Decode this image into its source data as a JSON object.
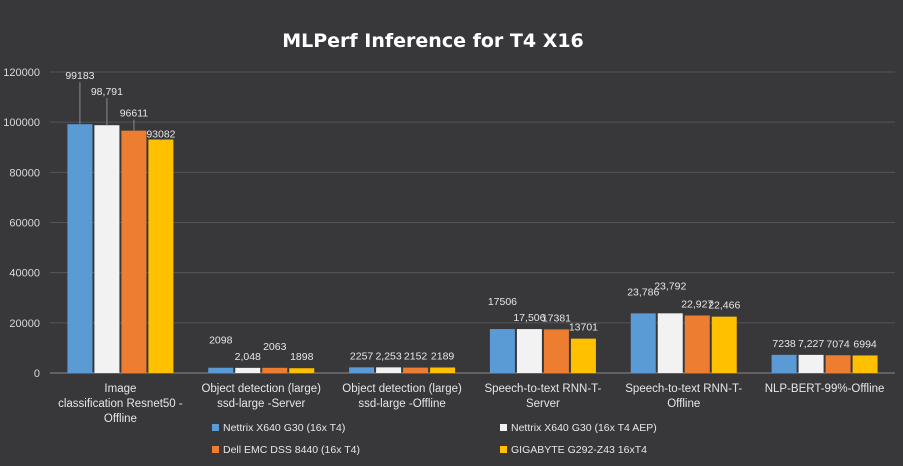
{
  "chart_data": {
    "type": "bar",
    "title": "MLPerf Inference for T4 X16",
    "xlabel": "",
    "ylabel": "",
    "ylim": [
      0,
      120000
    ],
    "yticks": [
      "0",
      "20000",
      "40000",
      "60000",
      "80000",
      "100000",
      "120000"
    ],
    "grid": true,
    "legend_position": "bottom",
    "categories": [
      [
        "Image",
        "classification Resnet50 -",
        "Offline"
      ],
      [
        "Object detection (large)",
        "ssd-large -Server"
      ],
      [
        "Object detection (large)",
        "ssd-large -Offline"
      ],
      [
        "Speech-to-text RNN-T-",
        "Server"
      ],
      [
        "Speech-to-text RNN-T-",
        "Offline"
      ],
      [
        "NLP-BERT-99%-Offline"
      ]
    ],
    "series": [
      {
        "name": "Nettrix X640 G30 (16x T4)",
        "color": "#5b9bd5",
        "values": [
          99183,
          2098,
          2257,
          17506,
          23786,
          7238
        ],
        "labels": [
          "99183",
          "2098",
          "2257",
          "17506",
          "23,786",
          "7238"
        ]
      },
      {
        "name": "Nettrix X640 G30 (16x T4 AEP)",
        "color": "#f2f2f2",
        "values": [
          98791,
          2048,
          2253,
          17506,
          23792,
          7227
        ],
        "labels": [
          "98,791",
          "2,048",
          "2,253",
          "17,506",
          "23,792",
          "7,227"
        ]
      },
      {
        "name": "Dell EMC DSS 8440 (16x T4)",
        "color": "#ed7d31",
        "values": [
          96611,
          2063,
          2152,
          17381,
          22927,
          7074
        ],
        "labels": [
          "96611",
          "2063",
          "2152",
          "17381",
          "22,927",
          "7074"
        ]
      },
      {
        "name": "GIGABYTE G292-Z43 16xT4",
        "color": "#ffc000",
        "values": [
          93082,
          1898,
          2189,
          13701,
          22466,
          6994
        ],
        "labels": [
          "93082",
          "1898",
          "2189",
          "13701",
          "22,466",
          "6994"
        ]
      }
    ]
  }
}
